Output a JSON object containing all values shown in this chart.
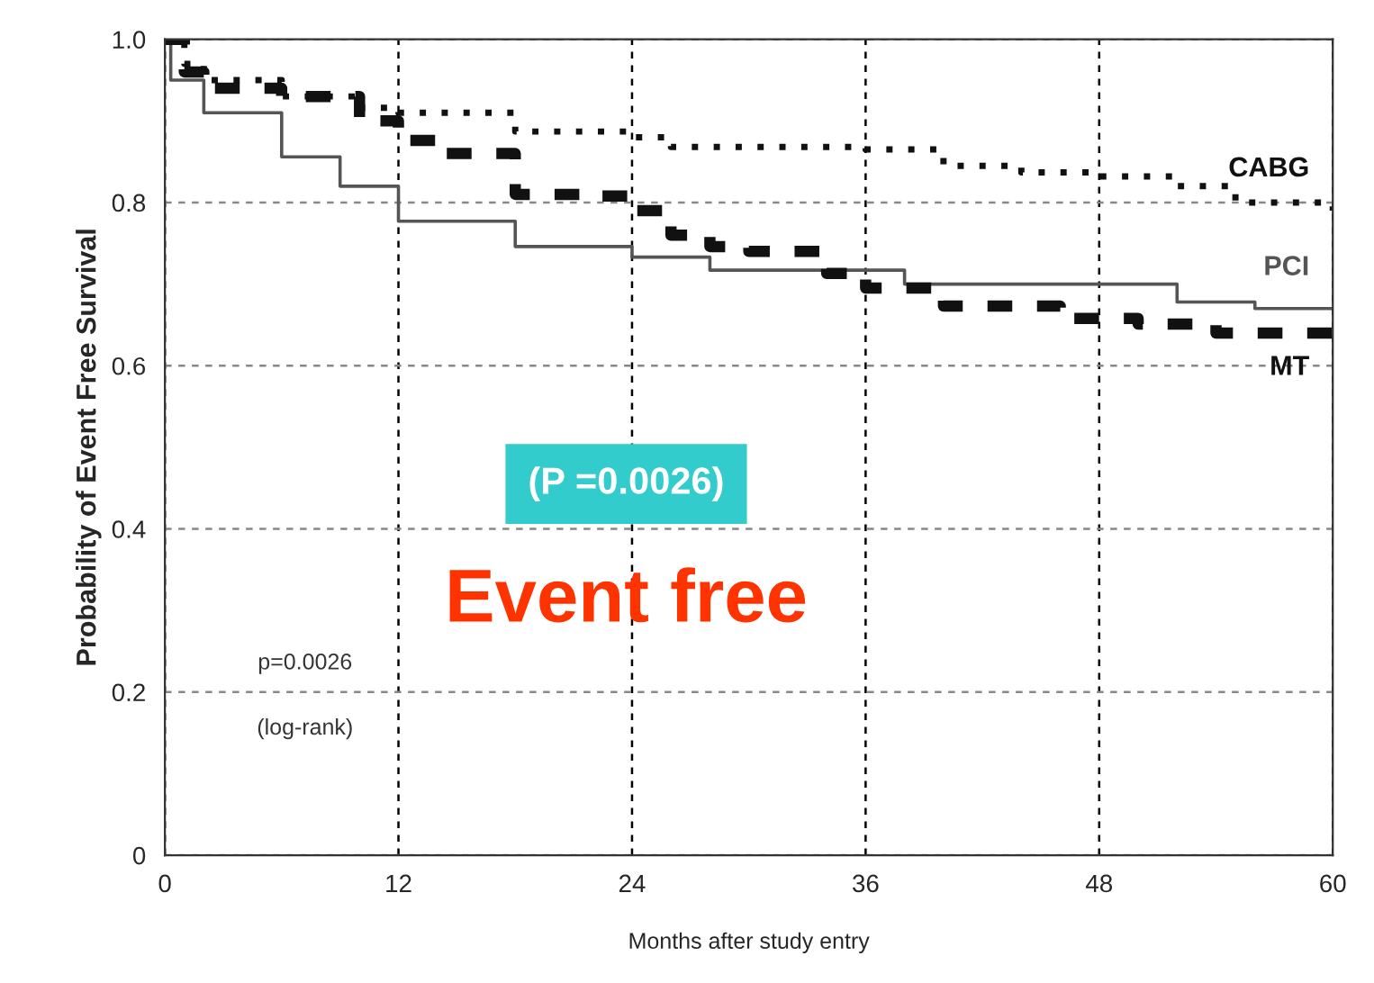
{
  "chart_data": {
    "type": "step",
    "xlabel": "Months after study entry",
    "ylabel": "Probability of Event Free Survival",
    "xlim": [
      0,
      60
    ],
    "ylim": [
      0,
      1
    ],
    "xticks": [
      0,
      12,
      24,
      36,
      48,
      60
    ],
    "yticks": [
      0,
      0.2,
      0.4,
      0.6,
      0.8,
      {
        "value": 1.0,
        "label": "1.0"
      }
    ],
    "grid": true,
    "legend": false,
    "marker": "none",
    "annotations": [
      "(P =0.0026)",
      "Event free",
      "p=0.0026",
      "(log-rank)"
    ],
    "series": [
      {
        "name": "CABG",
        "color": "#111111",
        "line_style": "dotted",
        "x": [
          0,
          1,
          2,
          6,
          10,
          12,
          18,
          24,
          26,
          36,
          40,
          44,
          48,
          52,
          55,
          60
        ],
        "values": [
          1.0,
          0.97,
          0.95,
          0.93,
          0.916,
          0.91,
          0.887,
          0.88,
          0.868,
          0.865,
          0.845,
          0.837,
          0.832,
          0.82,
          0.8,
          0.79
        ]
      },
      {
        "name": "PCI",
        "color": "#555555",
        "line_style": "solid",
        "x": [
          0,
          0.3,
          2,
          6,
          9,
          12,
          18,
          24,
          28,
          38,
          52,
          56,
          60
        ],
        "values": [
          1.0,
          0.95,
          0.91,
          0.856,
          0.82,
          0.777,
          0.746,
          0.733,
          0.717,
          0.7,
          0.678,
          0.67,
          0.669
        ]
      },
      {
        "name": "MT",
        "color": "#111111",
        "line_style": "dashed",
        "x": [
          0,
          1,
          2,
          6,
          10,
          12,
          14,
          18,
          22,
          24,
          26,
          28,
          30,
          34,
          36,
          40,
          46,
          50,
          54,
          60
        ],
        "values": [
          1.0,
          0.96,
          0.94,
          0.93,
          0.9,
          0.876,
          0.86,
          0.81,
          0.808,
          0.79,
          0.76,
          0.746,
          0.74,
          0.713,
          0.695,
          0.673,
          0.658,
          0.651,
          0.64,
          0.638
        ]
      }
    ]
  }
}
